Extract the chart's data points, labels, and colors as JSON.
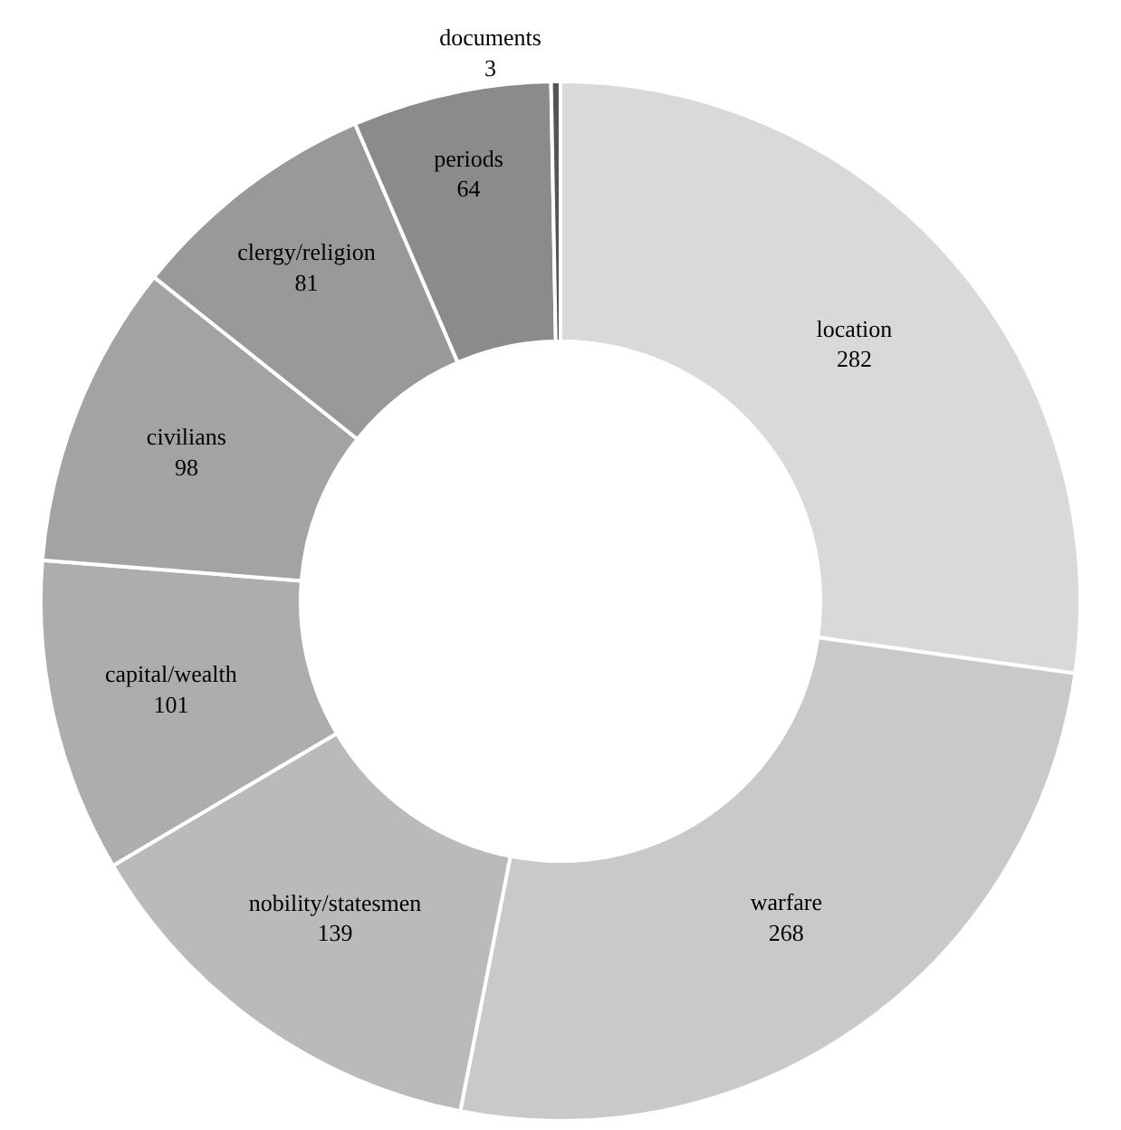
{
  "chart_data": {
    "type": "donut",
    "categories": [
      "location",
      "warfare",
      "nobility/statesmen",
      "capital/wealth",
      "civilians",
      "clergy/religion",
      "periods",
      "documents"
    ],
    "values": [
      282,
      268,
      139,
      101,
      98,
      81,
      64,
      3
    ],
    "colors": [
      "#d9d9d9",
      "#c9c9c9",
      "#bababa",
      "#adadad",
      "#a3a3a3",
      "#999999",
      "#8b8b8b",
      "#555555"
    ],
    "data_labels": true,
    "legend": false
  }
}
